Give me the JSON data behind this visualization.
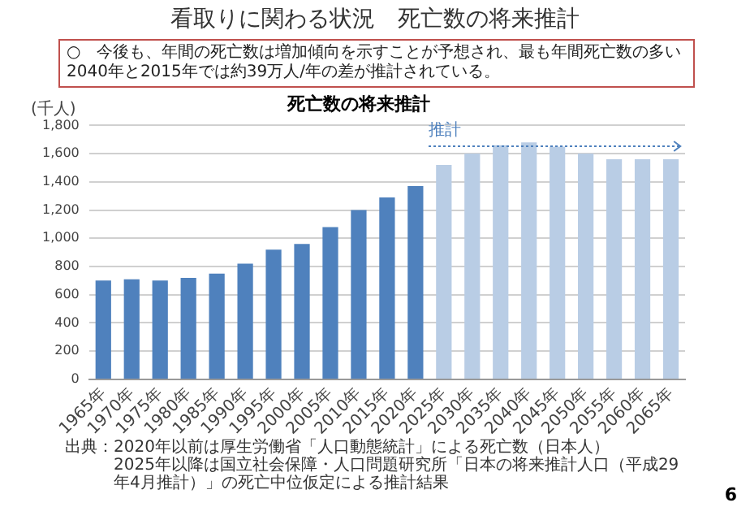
{
  "chart_data": {
    "type": "bar",
    "title": "看取りに関わる状況　死亡数の将来推計",
    "subtitle": "○　今後も、年間の死亡数は増加傾向を示すことが予想され、最も年間死亡数の多い2040年と2015年では約39万人/年の差が推計されている。",
    "ylabel": "(千人)",
    "categories": [
      "1965年",
      "1970年",
      "1975年",
      "1980年",
      "1985年",
      "1990年",
      "1995年",
      "2000年",
      "2005年",
      "2010年",
      "2015年",
      "2020年",
      "2025年",
      "2030年",
      "2035年",
      "2040年",
      "2045年",
      "2050年",
      "2055年",
      "2060年",
      "2065年"
    ],
    "values": [
      700,
      710,
      700,
      720,
      750,
      820,
      920,
      960,
      1080,
      1200,
      1290,
      1370,
      1520,
      1600,
      1660,
      1680,
      1650,
      1600,
      1560,
      1560,
      1560
    ],
    "colors": [
      "#4f81bd",
      "#4f81bd",
      "#4f81bd",
      "#4f81bd",
      "#4f81bd",
      "#4f81bd",
      "#4f81bd",
      "#4f81bd",
      "#4f81bd",
      "#4f81bd",
      "#4f81bd",
      "#4f81bd",
      "#b9cde5",
      "#b9cde5",
      "#b9cde5",
      "#b9cde5",
      "#b9cde5",
      "#b9cde5",
      "#b9cde5",
      "#b9cde5",
      "#b9cde5"
    ],
    "ylim": [
      0,
      1800
    ],
    "yticks": [
      0,
      200,
      400,
      600,
      800,
      {
        "value": 1000,
        "label": "1,000"
      },
      {
        "value": 1200,
        "label": "1,200"
      },
      {
        "value": 1400,
        "label": "1,400"
      },
      {
        "value": 1600,
        "label": "1,600"
      },
      {
        "value": 1800,
        "label": "1,800"
      }
    ],
    "grid": "y",
    "legend": false,
    "annotations": [
      "死亡数の将来推計",
      "推計",
      "出典：2020年以前は厚生労働省「人口動態統計」による死亡数（日本人）",
      "2025年以降は国立社会保障・人口問題研究所「日本の将来推計人口（平成29年4月推計）」の死亡中位仮定による推計結果",
      "6"
    ]
  }
}
